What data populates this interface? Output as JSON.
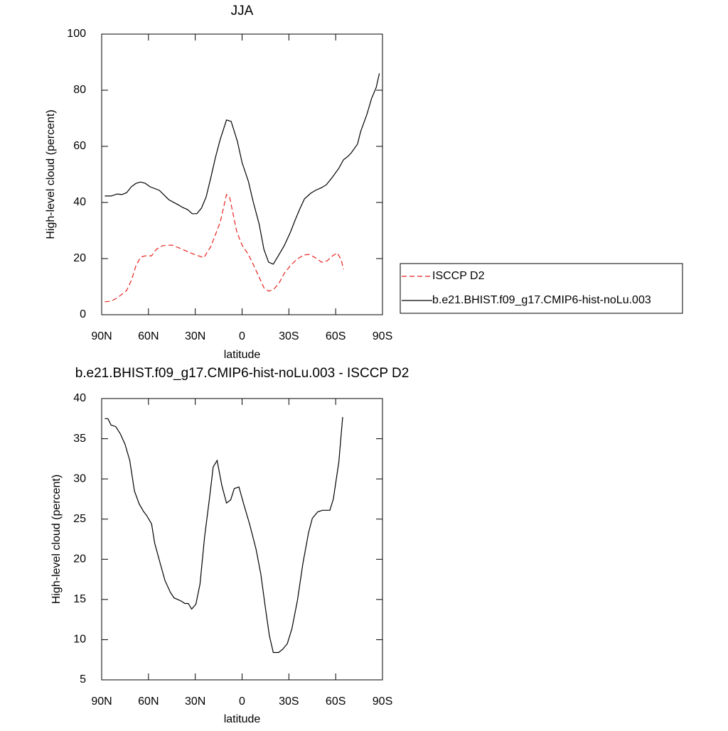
{
  "chart_data": [
    {
      "type": "line",
      "title": "JJA",
      "xlabel": "latitude",
      "ylabel": "High-level cloud (percent)",
      "xlim": [
        90,
        -90
      ],
      "xticks": [
        {
          "value": 90,
          "label": "90N"
        },
        {
          "value": 60,
          "label": "60N"
        },
        {
          "value": 30,
          "label": "30N"
        },
        0,
        {
          "value": -30,
          "label": "30S"
        },
        {
          "value": -60,
          "label": "60S"
        },
        {
          "value": -90,
          "label": "90S"
        }
      ],
      "ylim": [
        0,
        100
      ],
      "yticks": [
        0,
        20,
        40,
        60,
        80,
        100
      ],
      "legend": "right",
      "series": [
        {
          "name": "ISCCP D2",
          "color": "#e8221c",
          "dash": true,
          "x": [
            88,
            84,
            80,
            77,
            74,
            71,
            68,
            65,
            62,
            58,
            55,
            51,
            45,
            39,
            32,
            24.5,
            20,
            14,
            10,
            8,
            3.4,
            0,
            -4,
            -7.5,
            -11.5,
            -14,
            -17,
            -20,
            -23.5,
            -27,
            -31,
            -35,
            -39.5,
            -43,
            -47,
            -51,
            -54.5,
            -58,
            -61,
            -63.5,
            -65
          ],
          "values": [
            4.6,
            4.8,
            6,
            7.3,
            8.6,
            12.2,
            17.5,
            20.5,
            21,
            21,
            23.3,
            24.6,
            24.8,
            23.5,
            21.8,
            20.3,
            24.3,
            33,
            42.8,
            42,
            29.6,
            24.8,
            21.5,
            17.5,
            12.7,
            9.6,
            8.4,
            8.9,
            11.1,
            14.7,
            17.5,
            19.7,
            21.3,
            21.5,
            20.3,
            18.7,
            19.2,
            21,
            22,
            19.7,
            16.2
          ]
        },
        {
          "name": "b.e21.BHIST.f09_g17.CMIP6-hist-noLu.003",
          "color": "#000000",
          "dash": false,
          "x": [
            88,
            84,
            80,
            77,
            74,
            71,
            68,
            65,
            62,
            59,
            53,
            47,
            41,
            38,
            35,
            32,
            29,
            26,
            23,
            20,
            17,
            14,
            10,
            7,
            3,
            0,
            -4,
            -7,
            -11,
            -14,
            -17,
            -20,
            -23,
            -27,
            -31,
            -34,
            -37,
            -40,
            -44,
            -47,
            -51,
            -54,
            -58,
            -62,
            -65,
            -68,
            -70,
            -74,
            -76,
            -80,
            -83,
            -86,
            -88
          ],
          "values": [
            42.3,
            42.3,
            43,
            42.8,
            43.5,
            45.6,
            46.8,
            47.3,
            46.8,
            45.6,
            44.3,
            41,
            39.2,
            38.2,
            37.5,
            36,
            36,
            38,
            42,
            48.9,
            56.2,
            62.5,
            69.4,
            68.9,
            61.8,
            54.2,
            47.6,
            40.5,
            32.2,
            23.3,
            18.7,
            18,
            20.8,
            24.6,
            29.4,
            33.7,
            37.7,
            41.3,
            43.3,
            44.3,
            45.3,
            46.3,
            49.1,
            52.2,
            55.2,
            56.5,
            57.7,
            60.8,
            65.3,
            71.4,
            77,
            81,
            86
          ]
        }
      ]
    },
    {
      "type": "line",
      "title": "b.e21.BHIST.f09_g17.CMIP6-hist-noLu.003 - ISCCP D2",
      "xlabel": "latitude",
      "ylabel": "High-level cloud (percent)",
      "xlim": [
        90,
        -90
      ],
      "xticks": [
        {
          "value": 90,
          "label": "90N"
        },
        {
          "value": 60,
          "label": "60N"
        },
        {
          "value": 30,
          "label": "30N"
        },
        0,
        {
          "value": -30,
          "label": "30S"
        },
        {
          "value": -60,
          "label": "60S"
        },
        {
          "value": -90,
          "label": "90S"
        }
      ],
      "ylim": [
        5,
        40
      ],
      "yticks": [
        5,
        10,
        15,
        20,
        25,
        30,
        35,
        40
      ],
      "color": "#000000",
      "x": [
        88,
        86,
        84,
        81,
        78,
        75,
        72,
        69,
        66,
        63,
        61,
        58,
        56,
        52.5,
        49.5,
        46,
        43.6,
        39,
        36.7,
        34.5,
        32.3,
        29.6,
        27,
        24,
        21,
        18.5,
        16,
        13,
        10,
        7.3,
        5,
        2,
        -1,
        -4.8,
        -6.8,
        -9,
        -12,
        -15,
        -17.5,
        -20,
        -23.4,
        -26,
        -29,
        -32,
        -35.5,
        -39,
        -42.6,
        -45,
        -48.5,
        -51.5,
        -56.3,
        -58.5,
        -62,
        -64.5
      ],
      "values": [
        37.5,
        37.5,
        36.7,
        36.5,
        35.6,
        34.3,
        32.3,
        28.5,
        26.9,
        25.9,
        25.4,
        24.4,
        22,
        19.5,
        17.4,
        15.9,
        15.2,
        14.8,
        14.5,
        14.5,
        13.8,
        14.4,
        16.9,
        22.8,
        27.4,
        31.5,
        32.3,
        29.2,
        27,
        27.4,
        28.8,
        29,
        26.9,
        24.4,
        22.9,
        21.2,
        18.2,
        13.9,
        10.5,
        8.4,
        8.4,
        8.8,
        9.5,
        11.4,
        14.9,
        19.5,
        23.3,
        25.1,
        25.9,
        26.1,
        26.1,
        27.5,
        32.1,
        37.7
      ]
    }
  ]
}
